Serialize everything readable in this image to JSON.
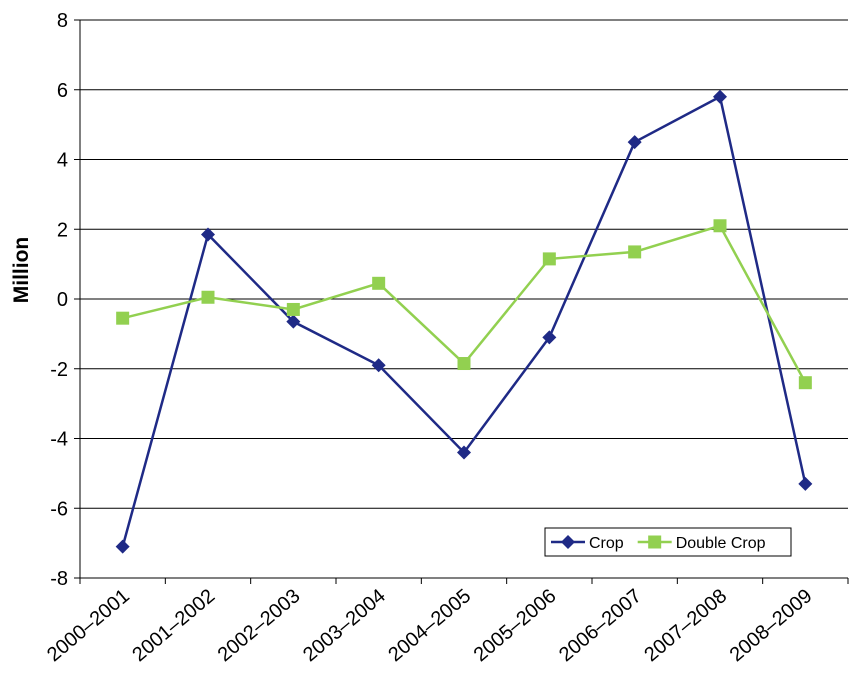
{
  "chart_data": {
    "type": "line",
    "y_label": "Million",
    "categories": [
      "2000–2001",
      "2001–2002",
      "2002–2003",
      "2003–2004",
      "2004–2005",
      "2005–2006",
      "2006–2007",
      "2007–2008",
      "2008–2009"
    ],
    "series": [
      {
        "name": "Crop",
        "color": "#1f2a86",
        "marker": "diamond",
        "values": [
          -7.1,
          1.85,
          -0.65,
          -1.9,
          -4.4,
          -1.1,
          4.5,
          5.8,
          -5.3
        ]
      },
      {
        "name": "Double Crop",
        "color": "#92d050",
        "marker": "square",
        "values": [
          -0.55,
          0.05,
          -0.3,
          0.45,
          -1.85,
          1.15,
          1.35,
          2.1,
          -2.4
        ]
      }
    ],
    "ylim": [
      -8,
      8
    ],
    "yticks": [
      -8,
      -6,
      -4,
      -2,
      0,
      2,
      4,
      6,
      8
    ],
    "grid": true,
    "legend": "lower right"
  }
}
